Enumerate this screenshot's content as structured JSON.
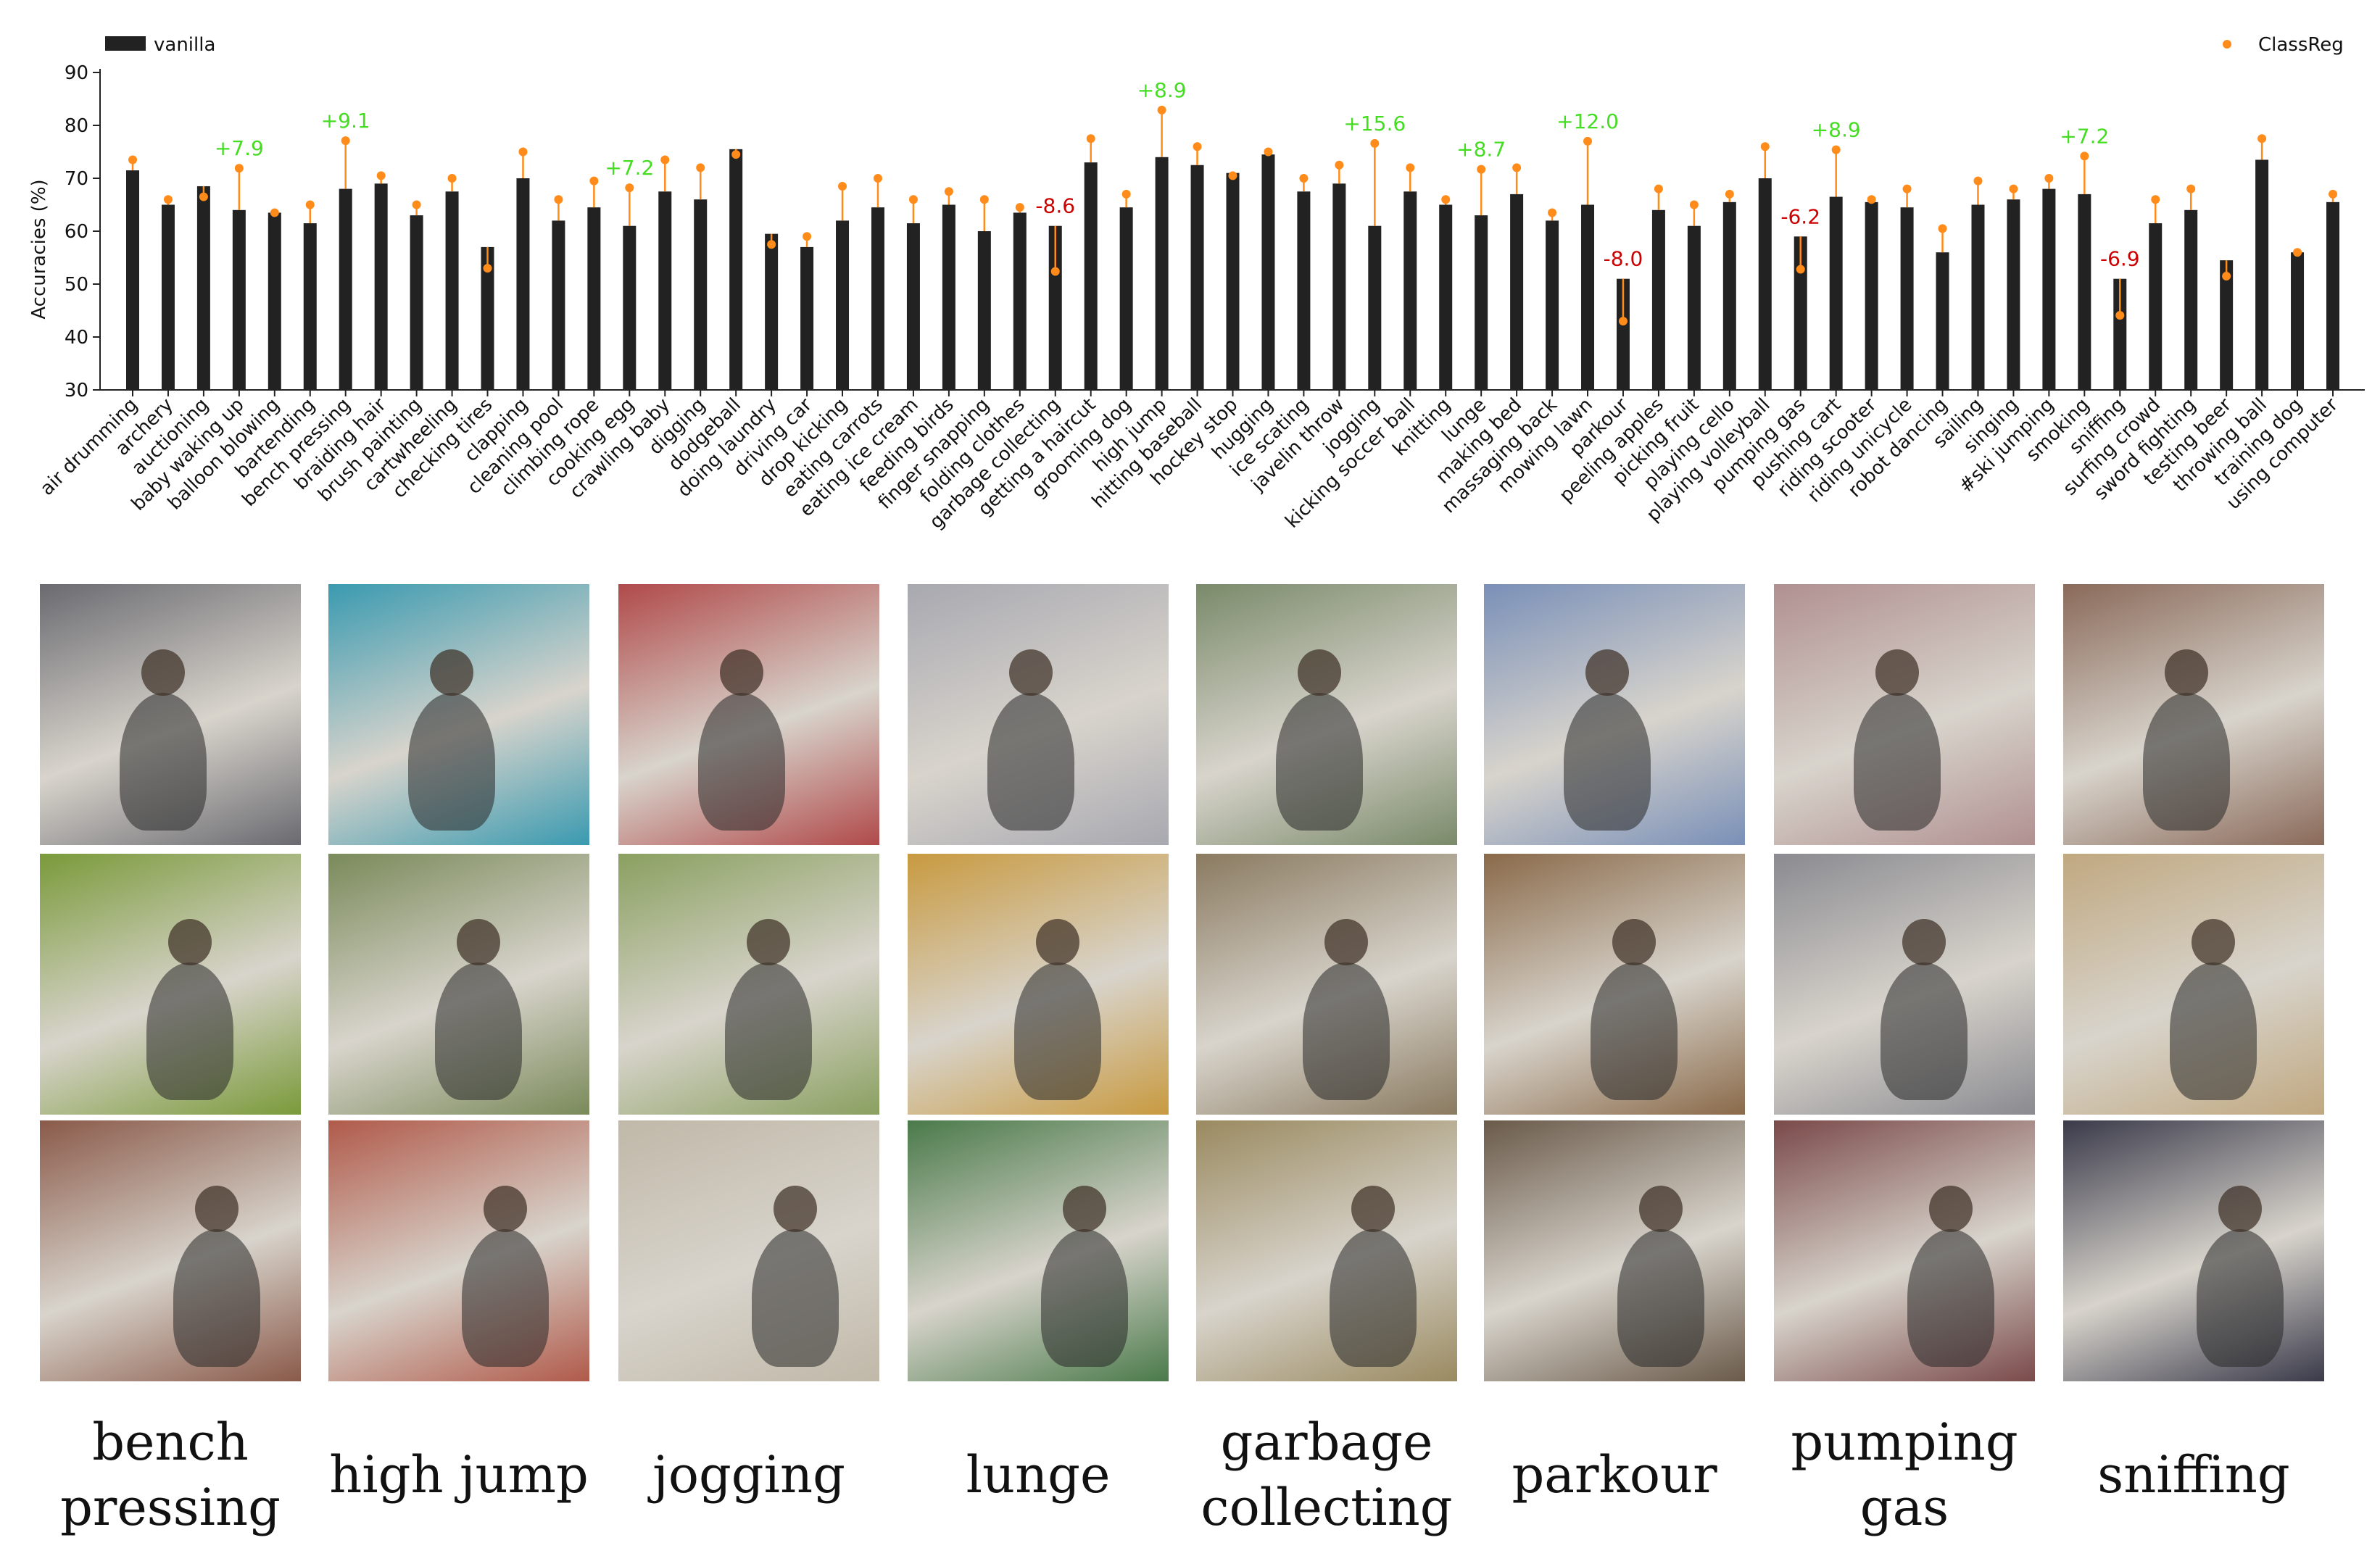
{
  "chart_data": {
    "type": "bar",
    "ylabel": "Accuracies (%)",
    "ylim": [
      30,
      90
    ],
    "yticks": [
      "30",
      "40",
      "50",
      "60",
      "70",
      "80",
      "90"
    ],
    "legend": {
      "placement": "top-left / top-right"
    },
    "categories": [
      "air drumming",
      "archery",
      "auctioning",
      "baby waking up",
      "balloon blowing",
      "bartending",
      "bench pressing",
      "braiding hair",
      "brush painting",
      "cartwheeling",
      "checking tires",
      "clapping",
      "cleaning pool",
      "climbing rope",
      "cooking egg",
      "crawling baby",
      "digging",
      "dodgeball",
      "doing laundry",
      "driving car",
      "drop kicking",
      "eating carrots",
      "eating ice cream",
      "feeding birds",
      "finger snapping",
      "folding clothes",
      "garbage collecting",
      "getting a haircut",
      "grooming dog",
      "high jump",
      "hitting baseball",
      "hockey stop",
      "hugging",
      "ice scating",
      "javelin throw",
      "jogging",
      "kicking soccer ball",
      "knitting",
      "lunge",
      "making bed",
      "massaging back",
      "mowing lawn",
      "parkour",
      "peeling apples",
      "picking fruit",
      "playing cello",
      "playing volleyball",
      "pumping gas",
      "pushing cart",
      "riding scooter",
      "riding unicycle",
      "robot dancing",
      "sailing",
      "singing",
      "#ski jumping",
      "smoking",
      "sniffing",
      "surfing crowd",
      "sword fighting",
      "testing beer",
      "throwing ball",
      "training dog",
      "using computer"
    ],
    "series": [
      {
        "name": "vanilla",
        "color": "#222222",
        "values": [
          71.5,
          65,
          68.5,
          64,
          63.5,
          61.5,
          68,
          69,
          63,
          67.5,
          57,
          70,
          62,
          64.5,
          61,
          67.5,
          66,
          75.5,
          59.5,
          57,
          62,
          64.5,
          61.5,
          65,
          60,
          63.5,
          61,
          73,
          64.5,
          74,
          72.5,
          71,
          74.5,
          67.5,
          69,
          61,
          67.5,
          65,
          63,
          67,
          62,
          65,
          51,
          64,
          61,
          65.5,
          70,
          59,
          66.5,
          65.5,
          64.5,
          56,
          65,
          66,
          68,
          67,
          51,
          61.5,
          64,
          54.5,
          73.5,
          56,
          65.5
        ]
      },
      {
        "name": "ClassReg",
        "color": "#ff8c1a",
        "values": [
          73.5,
          66,
          66.5,
          71.9,
          63.5,
          65,
          77.1,
          70.5,
          65,
          70,
          53,
          75,
          66,
          69.5,
          68.2,
          73.5,
          72,
          74.5,
          57.5,
          59,
          68.5,
          70,
          66,
          67.5,
          66,
          64.5,
          52.4,
          77.5,
          67,
          82.9,
          76,
          70.5,
          75,
          70,
          72.5,
          76.6,
          72,
          66,
          71.7,
          72,
          63.5,
          77,
          43,
          68,
          65,
          67,
          76,
          52.8,
          75.4,
          66,
          68,
          60.5,
          69.5,
          68,
          70,
          74.2,
          44.1,
          66,
          68,
          51.5,
          77.5,
          56,
          67
        ]
      }
    ],
    "annotations": [
      {
        "category": "baby waking up",
        "text": "+7.9",
        "color": "#44dd22"
      },
      {
        "category": "bench pressing",
        "text": "+9.1",
        "color": "#44dd22"
      },
      {
        "category": "cooking egg",
        "text": "+7.2",
        "color": "#44dd22"
      },
      {
        "category": "garbage collecting",
        "text": "-8.6",
        "color": "#cc0000"
      },
      {
        "category": "high jump",
        "text": "+8.9",
        "color": "#44dd22"
      },
      {
        "category": "jogging",
        "text": "+15.6",
        "color": "#44dd22"
      },
      {
        "category": "lunge",
        "text": "+8.7",
        "color": "#44dd22"
      },
      {
        "category": "mowing lawn",
        "text": "+12.0",
        "color": "#44dd22"
      },
      {
        "category": "parkour",
        "text": "-8.0",
        "color": "#cc0000"
      },
      {
        "category": "pumping gas",
        "text": "-6.2",
        "color": "#cc0000"
      },
      {
        "category": "pushing cart",
        "text": "+8.9",
        "color": "#44dd22"
      },
      {
        "category": "smoking",
        "text": "+7.2",
        "color": "#44dd22"
      },
      {
        "category": "sniffing",
        "text": "-6.9",
        "color": "#cc0000"
      }
    ]
  },
  "gallery": {
    "columns": [
      {
        "caption": [
          "bench",
          "pressing"
        ],
        "tones": [
          "#6a6a70",
          "#7a9a3a",
          "#8a5a4a"
        ]
      },
      {
        "caption": [
          "high jump"
        ],
        "tones": [
          "#3a9ab0",
          "#7a8a5a",
          "#b05a4a"
        ]
      },
      {
        "caption": [
          "jogging"
        ],
        "tones": [
          "#b04a4a",
          "#8aa060",
          "#c0b8a8"
        ]
      },
      {
        "caption": [
          "lunge"
        ],
        "tones": [
          "#a8a8b0",
          "#c89a40",
          "#4a7a4a"
        ]
      },
      {
        "caption": [
          "garbage",
          "collecting"
        ],
        "tones": [
          "#7a8a6a",
          "#8a7a60",
          "#9a8a60"
        ]
      },
      {
        "caption": [
          "parkour"
        ],
        "tones": [
          "#7a90b8",
          "#8a6a4a",
          "#6a5a4a"
        ]
      },
      {
        "caption": [
          "pumping",
          "gas"
        ],
        "tones": [
          "#b09090",
          "#8a8a90",
          "#7a4a4a"
        ]
      },
      {
        "caption": [
          "sniffing"
        ],
        "tones": [
          "#8a6a5a",
          "#c0a880",
          "#3a3a4a"
        ]
      }
    ]
  }
}
